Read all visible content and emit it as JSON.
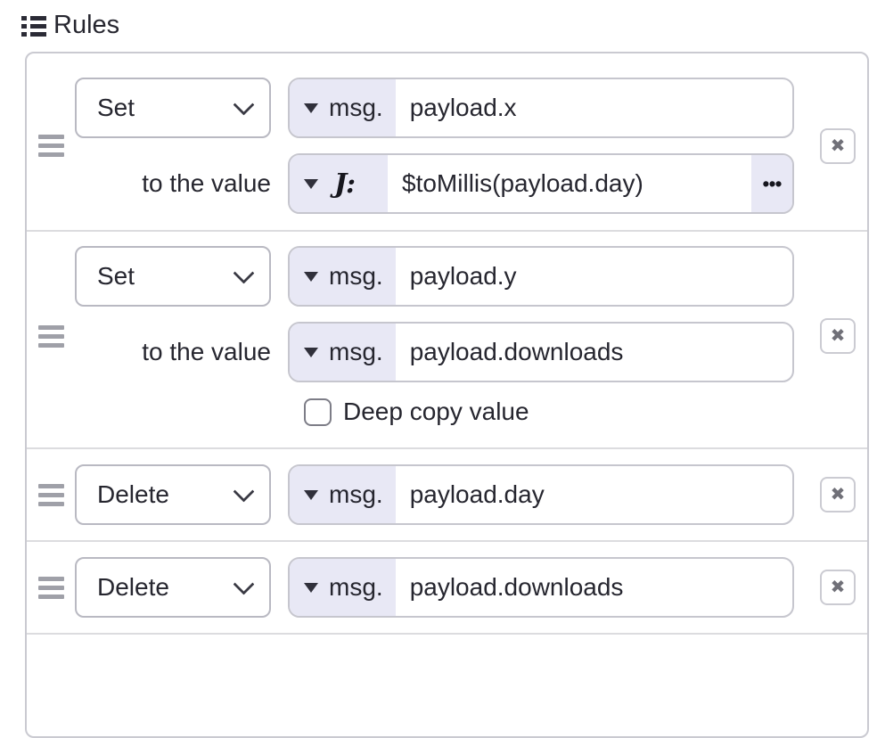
{
  "header": {
    "title": "Rules"
  },
  "labels": {
    "to_the_value": "to the value",
    "deep_copy_value": "Deep copy value"
  },
  "rules": [
    {
      "action": "Set",
      "property": {
        "type_label": "msg.",
        "value": "payload.x"
      },
      "value": {
        "type_label": "J:",
        "type": "jsonata-expression",
        "expression": "$toMillis(payload.day)"
      }
    },
    {
      "action": "Set",
      "property": {
        "type_label": "msg.",
        "value": "payload.y"
      },
      "value": {
        "type_label": "msg.",
        "type": "msg",
        "expression": "payload.downloads"
      },
      "deep_copy_checked": false
    },
    {
      "action": "Delete",
      "property": {
        "type_label": "msg.",
        "value": "payload.day"
      }
    },
    {
      "action": "Delete",
      "property": {
        "type_label": "msg.",
        "value": "payload.downloads"
      }
    }
  ],
  "icons": {
    "delete_glyph": "✖",
    "ellipsis_glyph": "•••"
  },
  "colors": {
    "type_prefix_bg": "#e8e8f5",
    "text": "#26262f",
    "container_border": "#cacad1",
    "divider": "#dcdcdf"
  }
}
